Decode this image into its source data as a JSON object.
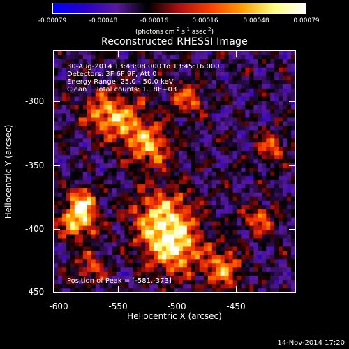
{
  "colorbar": {
    "ticks": [
      "-0.00079",
      "-0.00048",
      "-0.00016",
      "0.00016",
      "0.00048",
      "0.00079"
    ],
    "units_text": "(photons cm",
    "units_sup1": "-2",
    "units_mid1": " s",
    "units_sup2": "-1",
    "units_mid2": " asec",
    "units_sup3": "-2",
    "units_end": ")"
  },
  "title": "Reconstructed RHESSI Image",
  "annotations": {
    "time_range": "30-Aug-2014 13:43:08.000 to 13:45:16.000",
    "detectors": "Detectors: 3F 6F 9F, Att 0",
    "energy": "Energy Range: 25.0 - 50.0 keV",
    "clean": "Clean    Total counts: 1.18E+03",
    "peak": "Position of Peak = [-581,-373]"
  },
  "axes": {
    "x_title": "Heliocentric X (arcsec)",
    "y_title": "Heliocentric Y (arcsec)",
    "x_ticks": [
      "-600",
      "-550",
      "-500",
      "-450"
    ],
    "y_ticks": [
      "-300",
      "-350",
      "-400",
      "-450"
    ]
  },
  "timestamp": "14-Nov-2014 17:20",
  "colors": {
    "background": "#000000",
    "colormap": [
      "#0000ff",
      "#2a00c8",
      "#5a1aa0",
      "#000000",
      "#b01010",
      "#ff4000",
      "#ffa000",
      "#ffff80",
      "#ffffff"
    ]
  }
}
